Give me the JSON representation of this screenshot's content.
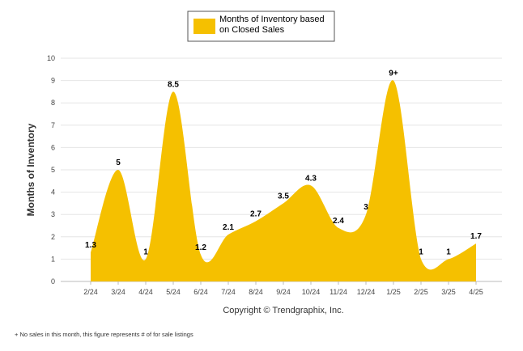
{
  "chart_data": {
    "type": "area",
    "legend": {
      "label_line1": "Months of Inventory based",
      "label_line2": "on Closed Sales",
      "position": "top-center"
    },
    "ylabel": "Months of Inventory",
    "xlabel": "",
    "ylim": [
      0,
      10
    ],
    "yticks": [
      "0",
      "1",
      "2",
      "3",
      "4",
      "5",
      "6",
      "7",
      "8",
      "9",
      "10"
    ],
    "grid": "horizontal",
    "categories": [
      "2/24",
      "3/24",
      "4/24",
      "5/24",
      "6/24",
      "7/24",
      "8/24",
      "9/24",
      "10/24",
      "11/24",
      "12/24",
      "1/25",
      "2/25",
      "3/25",
      "4/25"
    ],
    "series": [
      {
        "name": "Months of Inventory based on Closed Sales",
        "values": [
          1.3,
          5,
          1,
          8.5,
          1.2,
          2.1,
          2.7,
          3.5,
          4.3,
          2.4,
          3,
          9,
          1,
          1,
          1.7
        ],
        "labels": [
          "1.3",
          "5",
          "1",
          "8.5",
          "1.2",
          "2.1",
          "2.7",
          "3.5",
          "4.3",
          "2.4",
          "3",
          "9+",
          "1",
          "1",
          "1.7"
        ]
      }
    ],
    "color": "#f5c000",
    "copyright": "Copyright © Trendgraphix, Inc.",
    "footnote": "+ No sales in this month, this figure represents # of for sale listings"
  }
}
